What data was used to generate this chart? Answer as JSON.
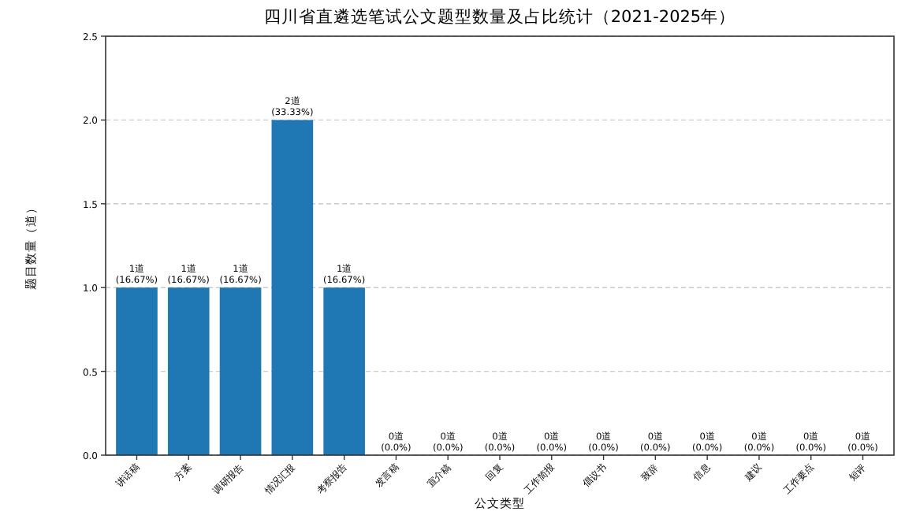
{
  "chart_data": {
    "type": "bar",
    "title": "四川省直遴选笔试公文题型数量及占比统计（2021-2025年）",
    "xlabel": "公文类型",
    "ylabel": "题目数量（道）",
    "categories": [
      "讲话稿",
      "方案",
      "调研报告",
      "情况汇报",
      "考察报告",
      "发言稿",
      "宣介稿",
      "回复",
      "工作简报",
      "倡议书",
      "致辞",
      "信息",
      "建议",
      "工作要点",
      "短评"
    ],
    "values": [
      1,
      1,
      1,
      2,
      1,
      0,
      0,
      0,
      0,
      0,
      0,
      0,
      0,
      0,
      0
    ],
    "value_labels": [
      "1道\n(16.67%)",
      "1道\n(16.67%)",
      "1道\n(16.67%)",
      "2道\n(33.33%)",
      "1道\n(16.67%)",
      "0道\n(0.0%)",
      "0道\n(0.0%)",
      "0道\n(0.0%)",
      "0道\n(0.0%)",
      "0道\n(0.0%)",
      "0道\n(0.0%)",
      "0道\n(0.0%)",
      "0道\n(0.0%)",
      "0道\n(0.0%)",
      "0道\n(0.0%)"
    ],
    "color": "#1f77b4",
    "ylim": [
      0,
      2.5
    ],
    "yticks": [
      {
        "value": 0,
        "label": "0.0"
      },
      {
        "value": 0.5,
        "label": "0.5"
      },
      {
        "value": 1,
        "label": "1.0"
      },
      {
        "value": 1.5,
        "label": "1.5"
      },
      {
        "value": 2,
        "label": "2.0"
      },
      {
        "value": 2.5,
        "label": "2.5"
      }
    ],
    "grid": "y"
  }
}
